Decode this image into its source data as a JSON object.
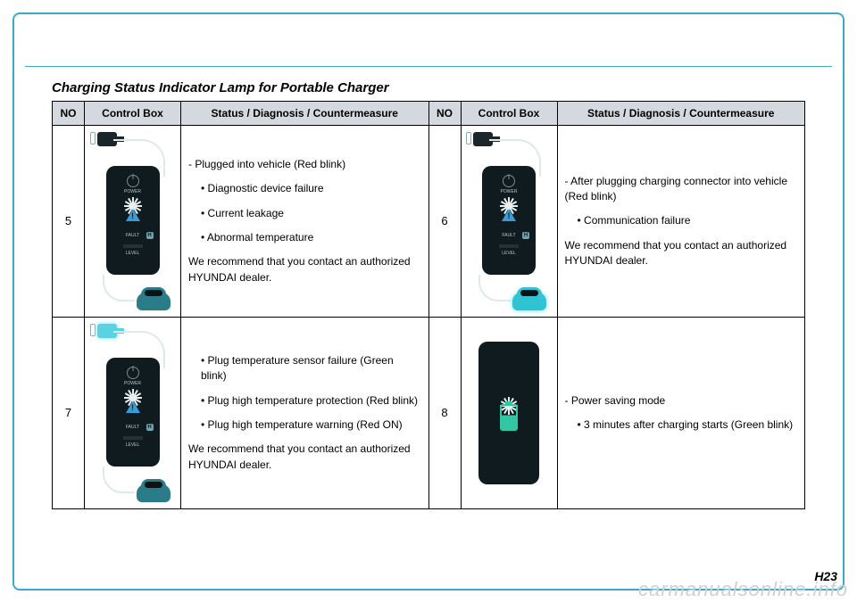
{
  "page": {
    "number": "H23",
    "watermark": "carmanualsonline.info"
  },
  "title": "Charging Status Indicator Lamp for Portable Charger",
  "headers": {
    "no": "NO",
    "control_box": "Control Box",
    "status": "Status / Diagnosis / Countermeasure"
  },
  "rows": [
    {
      "no": "5",
      "status": {
        "line1": "-  Plugged into vehicle (Red blink)",
        "sub1": "• Diagnostic device failure",
        "sub2": "• Current leakage",
        "sub3": "• Abnormal temperature",
        "rec": "We recommend that you contact an authorized HYUNDAI dealer."
      },
      "box": {
        "plug_lit": false,
        "car_lit": false,
        "battery_mode": false
      }
    },
    {
      "no": "6",
      "status": {
        "line1": "- After plugging charging connector into vehicle (Red blink)",
        "sub1": "• Communication failure",
        "rec": "We recommend that you contact an authorized HYUNDAI dealer."
      },
      "box": {
        "plug_lit": false,
        "car_lit": true,
        "battery_mode": false
      }
    },
    {
      "no": "7",
      "status": {
        "sub1": "•  Plug temperature sensor failure (Green blink)",
        "sub2": "•  Plug high temperature protection (Red blink)",
        "sub3": "•  Plug high temperature warning (Red ON)",
        "rec": "We recommend that you contact an authorized HYUNDAI dealer."
      },
      "box": {
        "plug_lit": true,
        "car_lit": false,
        "battery_mode": false
      }
    },
    {
      "no": "8",
      "status": {
        "line1": "-  Power saving mode",
        "sub1": "• 3 minutes after charging starts (Green blink)"
      },
      "box": {
        "plug_lit": false,
        "car_lit": false,
        "battery_mode": true
      }
    }
  ],
  "box_labels": {
    "power": "POWER",
    "fault": "FAULT",
    "level": "LEVEL",
    "h": "H"
  },
  "colors": {
    "outline": "#3da9c9",
    "header_bg": "#d3d9de",
    "box_bg": "#0f1b1e",
    "box_text": "#b8c6c9",
    "burst": "#e8eef0",
    "triangle": "#3a9bd6",
    "car": "#2a7c89",
    "car_lit": "#2fc3d4",
    "battery": "#33c6a3",
    "watermark": "#d0d0d0"
  }
}
